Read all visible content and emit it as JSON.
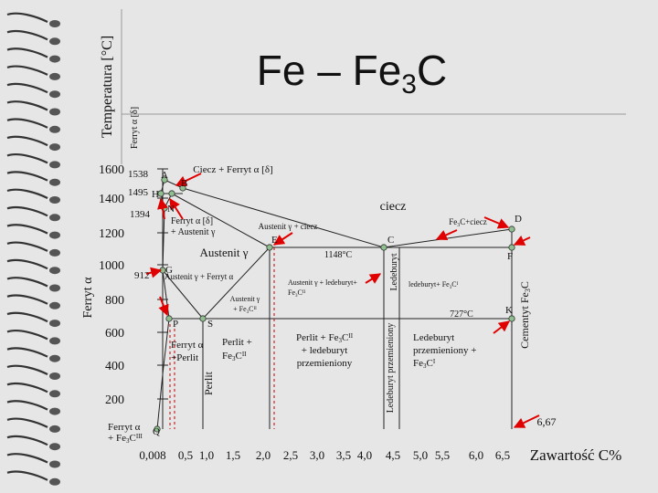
{
  "title": [
    "Fe – Fe",
    {
      "sub": "3"
    },
    "C"
  ],
  "temperature_ticks": [
    "1600",
    "1400",
    "1200",
    "1000",
    "800",
    "600",
    "400",
    "200"
  ],
  "x_ticks": [
    "0,008",
    "0,5",
    "1,0",
    "1,5",
    "2,0",
    "2,5",
    "3,0",
    "3,5",
    "4,0",
    "4,5",
    "5,0",
    "5,5",
    "6,0",
    "6,5"
  ],
  "labels": [
    {
      "lines": [
        [
          "Temperatura [°C]"
        ]
      ]
    },
    {
      "lines": [
        [
          "Ferryt α [δ]"
        ]
      ]
    },
    {
      "lines": [
        [
          "Ciecz + Ferryt α [δ]"
        ]
      ]
    },
    {
      "lines": [
        [
          "ciecz"
        ]
      ]
    },
    {
      "lines": [
        [
          "Ferryt α [δ]"
        ],
        [
          "+ Austenit γ"
        ]
      ]
    },
    {
      "lines": [
        [
          "Austenit γ + ciecz"
        ]
      ]
    },
    {
      "lines": [
        [
          "Fe",
          {
            "sub": "3"
          },
          "C+ciecz"
        ]
      ]
    },
    {
      "lines": [
        [
          "Austenit γ"
        ]
      ]
    },
    {
      "lines": [
        [
          "Austenit γ + Ferryt α"
        ]
      ]
    },
    {
      "lines": [
        [
          "Austenit γ + ledeburyt+"
        ],
        [
          "Fe",
          {
            "sub": "3"
          },
          "C",
          {
            "sup": "II"
          }
        ]
      ]
    },
    {
      "lines": [
        [
          "ledeburyt+ Fe",
          {
            "sub": "3"
          },
          "C",
          {
            "sup": "I"
          }
        ]
      ]
    },
    {
      "lines": [
        [
          "Austenit γ"
        ],
        [
          "+ Fe",
          {
            "sub": "3"
          },
          "C",
          {
            "sup": "II"
          }
        ]
      ]
    },
    {
      "lines": [
        [
          "Ferryt α"
        ],
        [
          "+Perlit"
        ]
      ]
    },
    {
      "lines": [
        [
          "Perlit +"
        ],
        [
          "Fe",
          {
            "sub": "3"
          },
          "C",
          {
            "sup": "II"
          }
        ]
      ]
    },
    {
      "lines": [
        [
          "Perlit + Fe",
          {
            "sub": "3"
          },
          "C",
          {
            "sup": "II"
          }
        ],
        [
          "+ ledeburyt"
        ],
        [
          "przemieniony"
        ]
      ]
    },
    {
      "lines": [
        [
          "Ledeburyt"
        ],
        [
          "przemieniony +"
        ],
        [
          "Fe",
          {
            "sub": "3"
          },
          "C",
          {
            "sup": "I"
          }
        ]
      ]
    },
    {
      "lines": [
        [
          "Perlit"
        ]
      ]
    },
    {
      "lines": [
        [
          "Ledeburyt przemieniony"
        ]
      ]
    },
    {
      "lines": [
        [
          "Ledeburyt"
        ]
      ]
    },
    {
      "lines": [
        [
          "Cementyt Fe",
          {
            "sub": "3"
          },
          "C"
        ]
      ]
    },
    {
      "lines": [
        [
          "Ferryt α"
        ]
      ]
    },
    {
      "lines": [
        [
          "Ferryt α"
        ],
        [
          "+ Fe",
          {
            "sub": "3"
          },
          "C",
          {
            "sup": "III"
          }
        ]
      ]
    },
    {
      "lines": [
        [
          "Zawartość C%"
        ]
      ]
    },
    {
      "lines": [
        [
          "1538"
        ]
      ]
    },
    {
      "lines": [
        [
          "1495"
        ]
      ]
    },
    {
      "lines": [
        [
          "1394"
        ]
      ]
    },
    {
      "lines": [
        [
          "912"
        ]
      ]
    },
    {
      "lines": [
        [
          "1148°C"
        ]
      ]
    },
    {
      "lines": [
        [
          "727°C"
        ]
      ]
    },
    {
      "lines": [
        [
          "6,67"
        ]
      ]
    }
  ],
  "points": [
    "A",
    "B",
    "H",
    "N",
    "E",
    "C",
    "D",
    "F",
    "G",
    "P",
    "S",
    "K",
    "Q"
  ]
}
